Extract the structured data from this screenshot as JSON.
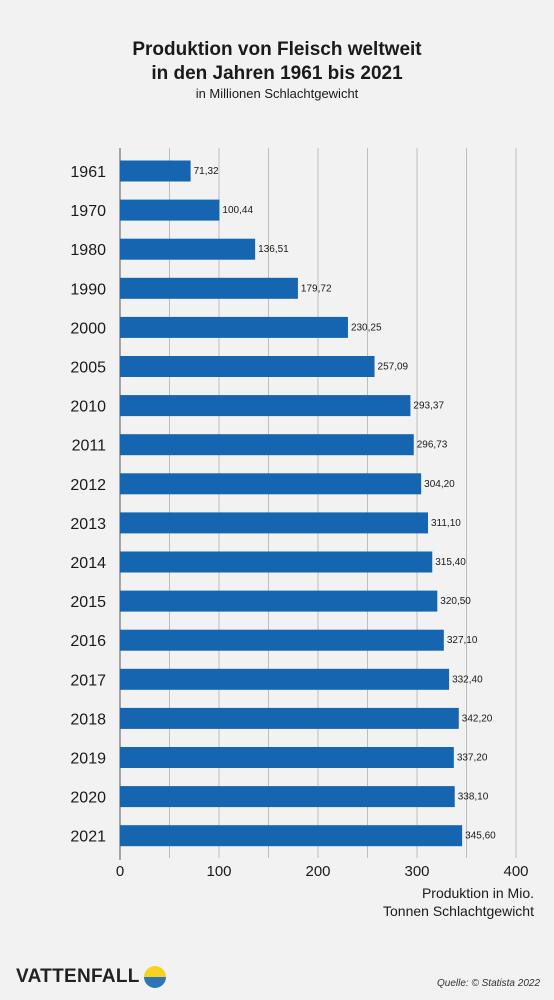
{
  "header": {
    "title_line1": "Produktion von Fleisch weltweit",
    "title_line2": "in den Jahren 1961 bis 2021",
    "subtitle": "in Millionen Schlachtgewicht"
  },
  "axis_caption": {
    "line1": "Produktion in Mio.",
    "line2": "Tonnen Schlachtgewicht"
  },
  "footer": {
    "brand": "VATTENFALL",
    "source": "Quelle: © Statista 2022"
  },
  "colors": {
    "bar": "#1565b0",
    "grid": "#bdbdbd",
    "background": "#f2f2f2"
  },
  "chart_data": {
    "type": "bar",
    "orientation": "horizontal",
    "title": "Produktion von Fleisch weltweit in den Jahren 1961 bis 2021",
    "subtitle": "in Millionen Schlachtgewicht",
    "xlabel": "Produktion in Mio. Tonnen Schlachtgewicht",
    "ylabel": "",
    "xlim": [
      0,
      400
    ],
    "xticks": [
      0,
      100,
      200,
      300,
      400
    ],
    "grid": true,
    "categories": [
      "1961",
      "1970",
      "1980",
      "1990",
      "2000",
      "2005",
      "2010",
      "2011",
      "2012",
      "2013",
      "2014",
      "2015",
      "2016",
      "2017",
      "2018",
      "2019",
      "2020",
      "2021"
    ],
    "values": [
      71.32,
      100.44,
      136.51,
      179.72,
      230.25,
      257.09,
      293.37,
      296.73,
      304.2,
      311.1,
      315.4,
      320.5,
      327.1,
      332.4,
      342.2,
      337.2,
      338.1,
      345.6
    ],
    "value_labels": [
      "71,32",
      "100,44",
      "136,51",
      "179,72",
      "230,25",
      "257,09",
      "293,37",
      "296,73",
      "304,20",
      "311,10",
      "315,40",
      "320,50",
      "327,10",
      "332,40",
      "342,20",
      "337,20",
      "338,10",
      "345,60"
    ]
  }
}
